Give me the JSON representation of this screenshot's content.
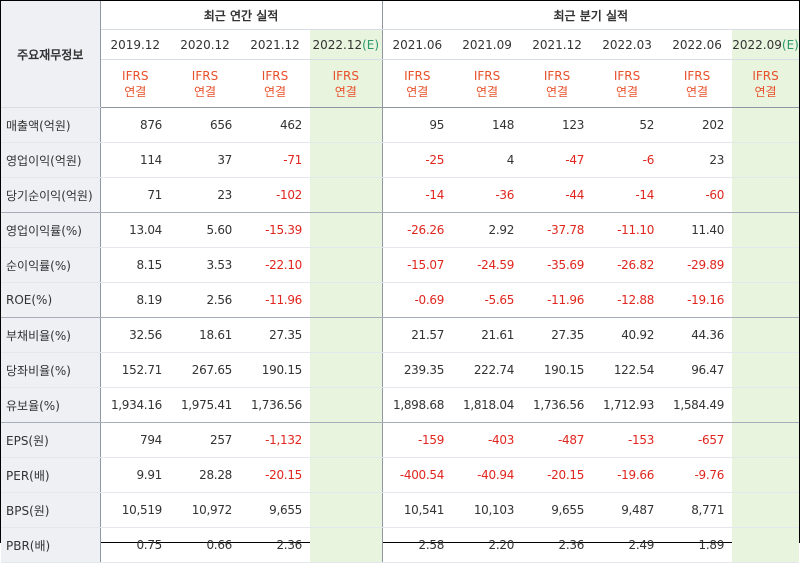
{
  "header": {
    "label_column": "주요재무정보",
    "annual_group": "최근 연간 실적",
    "quarter_group": "최근 분기 실적",
    "annual_periods": [
      "2019.12",
      "2020.12",
      "2021.12",
      "2022.12",
      "(E)"
    ],
    "quarter_periods": [
      "2021.06",
      "2021.09",
      "2021.12",
      "2022.03",
      "2022.06",
      "2022.09",
      "(E)"
    ],
    "ifrs_line1": "IFRS",
    "ifrs_line2": "연결"
  },
  "rows": [
    {
      "label": "매출액(억원)",
      "annual": [
        "876",
        "656",
        "462",
        ""
      ],
      "quarter": [
        "95",
        "148",
        "123",
        "52",
        "202",
        ""
      ]
    },
    {
      "label": "영업이익(억원)",
      "annual": [
        "114",
        "37",
        "-71",
        ""
      ],
      "quarter": [
        "-25",
        "4",
        "-47",
        "-6",
        "23",
        ""
      ]
    },
    {
      "label": "당기순이익(억원)",
      "annual": [
        "71",
        "23",
        "-102",
        ""
      ],
      "quarter": [
        "-14",
        "-36",
        "-44",
        "-14",
        "-60",
        ""
      ]
    },
    {
      "label": "영업이익률(%)",
      "annual": [
        "13.04",
        "5.60",
        "-15.39",
        ""
      ],
      "quarter": [
        "-26.26",
        "2.92",
        "-37.78",
        "-11.10",
        "11.40",
        ""
      ]
    },
    {
      "label": "순이익률(%)",
      "annual": [
        "8.15",
        "3.53",
        "-22.10",
        ""
      ],
      "quarter": [
        "-15.07",
        "-24.59",
        "-35.69",
        "-26.82",
        "-29.89",
        ""
      ]
    },
    {
      "label": "ROE(%)",
      "annual": [
        "8.19",
        "2.56",
        "-11.96",
        ""
      ],
      "quarter": [
        "-0.69",
        "-5.65",
        "-11.96",
        "-12.88",
        "-19.16",
        ""
      ]
    },
    {
      "label": "부채비율(%)",
      "annual": [
        "32.56",
        "18.61",
        "27.35",
        ""
      ],
      "quarter": [
        "21.57",
        "21.61",
        "27.35",
        "40.92",
        "44.36",
        ""
      ]
    },
    {
      "label": "당좌비율(%)",
      "annual": [
        "152.71",
        "267.65",
        "190.15",
        ""
      ],
      "quarter": [
        "239.35",
        "222.74",
        "190.15",
        "122.54",
        "96.47",
        ""
      ]
    },
    {
      "label": "유보율(%)",
      "annual": [
        "1,934.16",
        "1,975.41",
        "1,736.56",
        ""
      ],
      "quarter": [
        "1,898.68",
        "1,818.04",
        "1,736.56",
        "1,712.93",
        "1,584.49",
        ""
      ]
    },
    {
      "label": "EPS(원)",
      "annual": [
        "794",
        "257",
        "-1,132",
        ""
      ],
      "quarter": [
        "-159",
        "-403",
        "-487",
        "-153",
        "-657",
        ""
      ]
    },
    {
      "label": "PER(배)",
      "annual": [
        "9.91",
        "28.28",
        "-20.15",
        ""
      ],
      "quarter": [
        "-400.54",
        "-40.94",
        "-20.15",
        "-19.66",
        "-9.76",
        ""
      ]
    },
    {
      "label": "BPS(원)",
      "annual": [
        "10,519",
        "10,972",
        "9,655",
        ""
      ],
      "quarter": [
        "10,541",
        "10,103",
        "9,655",
        "9,487",
        "8,771",
        ""
      ]
    },
    {
      "label": "PBR(배)",
      "annual": [
        "0.75",
        "0.66",
        "2.36",
        ""
      ],
      "quarter": [
        "2.58",
        "2.20",
        "2.36",
        "2.49",
        "1.89",
        ""
      ]
    }
  ],
  "colors": {
    "negative": "#e0261f",
    "ifrs": "#e8502a",
    "estimate_bg": "#e9f4df",
    "label_bg": "#eef0f4"
  }
}
